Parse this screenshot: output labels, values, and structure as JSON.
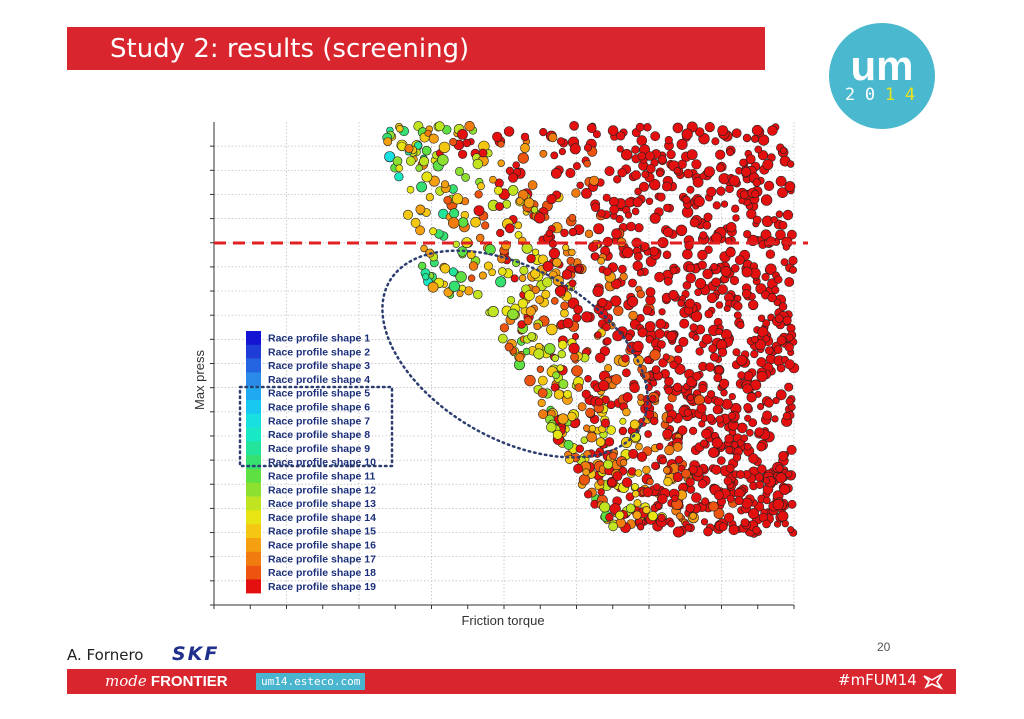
{
  "slide": {
    "title": "Study 2: results (screening)",
    "author": "A. Fornero",
    "company_logo": "SKF",
    "page_number": "20",
    "brand_mode": "mode",
    "brand_frontier": "FRONTIER",
    "url": "um14.esteco.com",
    "hashtag": "#mFUM14",
    "logo": {
      "top": "um",
      "year_digits": [
        "2",
        "0",
        "1",
        "4"
      ]
    },
    "colors": {
      "red": "#d9262e",
      "logo_blue": "#4ab8ce",
      "logo_yellow": "#e9e21f"
    }
  },
  "chart_data": {
    "type": "scatter",
    "xlabel": "Friction torque",
    "ylabel": "Max press",
    "grid": true,
    "legend_placement": "left-inside",
    "threshold_line": {
      "style": "dashed",
      "color": "#e02020"
    },
    "highlight": {
      "ellipse": "dotted outline around low-pressure cluster",
      "legend_box": [
        "Race profile shape 5",
        "Race profile shape 10"
      ]
    },
    "categories": [
      {
        "label": "Race profile shape 1",
        "color": "#1414d2"
      },
      {
        "label": "Race profile shape 2",
        "color": "#1e3cd6"
      },
      {
        "label": "Race profile shape 3",
        "color": "#2464e0"
      },
      {
        "label": "Race profile shape 4",
        "color": "#2a8ae8"
      },
      {
        "label": "Race profile shape 5",
        "color": "#20a8f0"
      },
      {
        "label": "Race profile shape 6",
        "color": "#18c8f0"
      },
      {
        "label": "Race profile shape 7",
        "color": "#18e0e0"
      },
      {
        "label": "Race profile shape 8",
        "color": "#18e8c4"
      },
      {
        "label": "Race profile shape 9",
        "color": "#22e49a"
      },
      {
        "label": "Race profile shape 10",
        "color": "#36e070"
      },
      {
        "label": "Race profile shape 11",
        "color": "#5ee042"
      },
      {
        "label": "Race profile shape 12",
        "color": "#8ee030"
      },
      {
        "label": "Race profile shape 13",
        "color": "#c0e420"
      },
      {
        "label": "Race profile shape 14",
        "color": "#e8e414"
      },
      {
        "label": "Race profile shape 15",
        "color": "#f4c812"
      },
      {
        "label": "Race profile shape 16",
        "color": "#f4a010"
      },
      {
        "label": "Race profile shape 17",
        "color": "#f07c10"
      },
      {
        "label": "Race profile shape 18",
        "color": "#ec5410"
      },
      {
        "label": "Race profile shape 19",
        "color": "#e41010"
      }
    ],
    "point_count": 1500
  }
}
